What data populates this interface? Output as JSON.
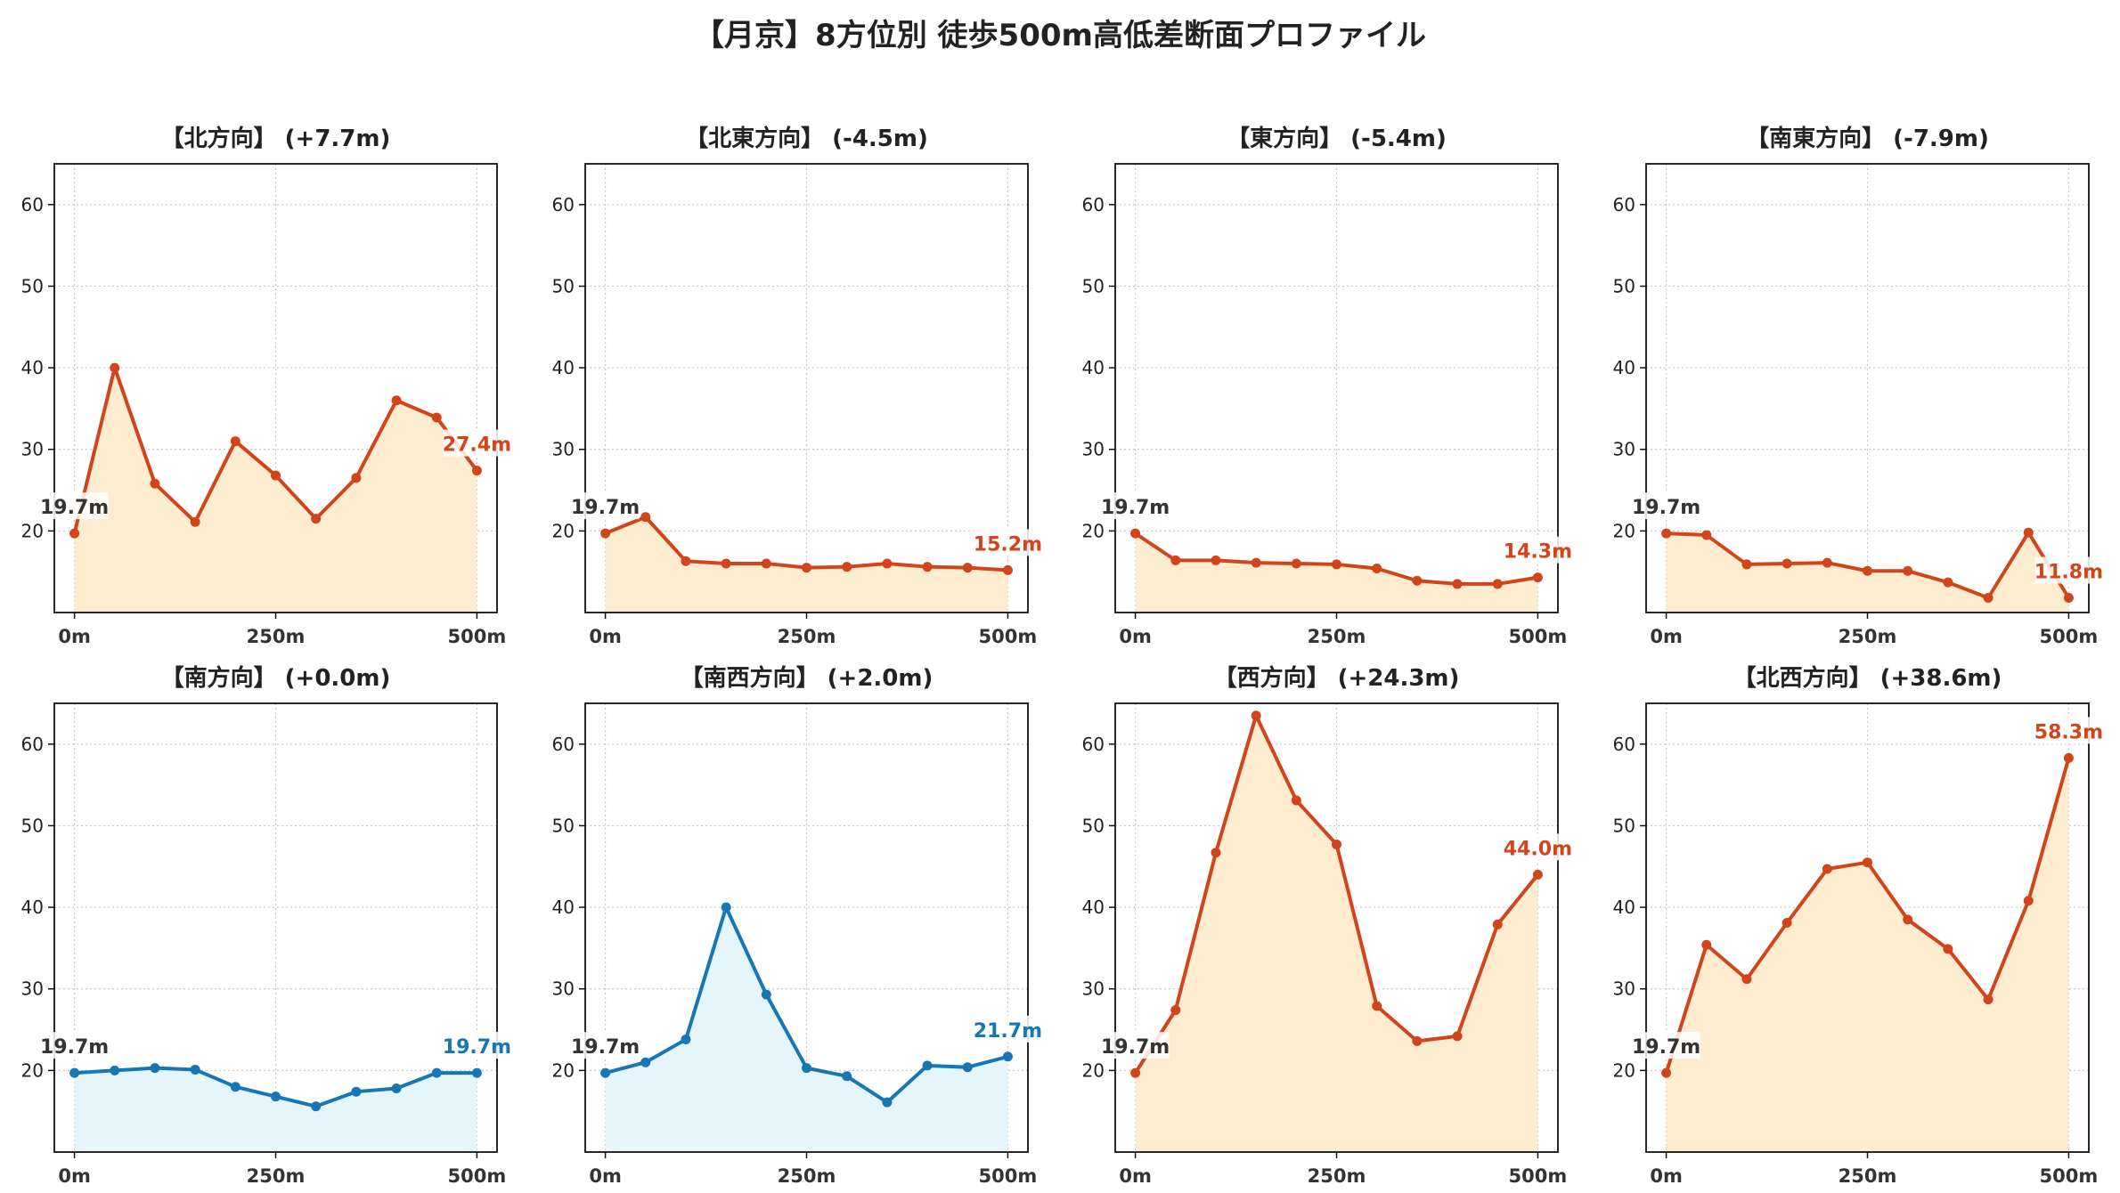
{
  "figure": {
    "title": "【月京】8方位別 徒歩500m高低差断面プロファイル"
  },
  "colors": {
    "up_line": "#d2441a",
    "up_fill": "#fdecd0",
    "down_line": "#1676b6",
    "down_fill": "#e6f4fb",
    "start_label": "#333333",
    "grid": "#c8c8c8"
  },
  "chart_data": [
    {
      "type": "area",
      "title": "【北方向】 (+7.7m)",
      "x": [
        0,
        50,
        100,
        150,
        200,
        250,
        300,
        350,
        400,
        450,
        500
      ],
      "xticks": [
        0,
        250,
        500
      ],
      "xtick_labels": [
        "0m",
        "250m",
        "500m"
      ],
      "values": [
        19.7,
        40.0,
        25.8,
        21.1,
        31.0,
        26.8,
        21.5,
        26.5,
        36.0,
        33.9,
        27.4
      ],
      "start_label": "19.7m",
      "end_label": "27.4m",
      "trend": "up",
      "ylim": [
        10,
        65
      ],
      "yticks": [
        20,
        30,
        40,
        50,
        60
      ],
      "grid": true
    },
    {
      "type": "area",
      "title": "【北東方向】 (-4.5m)",
      "x": [
        0,
        50,
        100,
        150,
        200,
        250,
        300,
        350,
        400,
        450,
        500
      ],
      "xticks": [
        0,
        250,
        500
      ],
      "xtick_labels": [
        "0m",
        "250m",
        "500m"
      ],
      "values": [
        19.7,
        21.7,
        16.3,
        16.0,
        16.0,
        15.5,
        15.6,
        16.0,
        15.6,
        15.5,
        15.2
      ],
      "start_label": "19.7m",
      "end_label": "15.2m",
      "trend": "up",
      "ylim": [
        10,
        65
      ],
      "yticks": [
        20,
        30,
        40,
        50,
        60
      ],
      "grid": true
    },
    {
      "type": "area",
      "title": "【東方向】 (-5.4m)",
      "x": [
        0,
        50,
        100,
        150,
        200,
        250,
        300,
        350,
        400,
        450,
        500
      ],
      "xticks": [
        0,
        250,
        500
      ],
      "xtick_labels": [
        "0m",
        "250m",
        "500m"
      ],
      "values": [
        19.7,
        16.4,
        16.4,
        16.1,
        16.0,
        15.9,
        15.4,
        13.9,
        13.5,
        13.5,
        14.3
      ],
      "start_label": "19.7m",
      "end_label": "14.3m",
      "trend": "up",
      "ylim": [
        10,
        65
      ],
      "yticks": [
        20,
        30,
        40,
        50,
        60
      ],
      "grid": true
    },
    {
      "type": "area",
      "title": "【南東方向】 (-7.9m)",
      "x": [
        0,
        50,
        100,
        150,
        200,
        250,
        300,
        350,
        400,
        450,
        500
      ],
      "xticks": [
        0,
        250,
        500
      ],
      "xtick_labels": [
        "0m",
        "250m",
        "500m"
      ],
      "values": [
        19.7,
        19.5,
        15.9,
        16.0,
        16.1,
        15.1,
        15.1,
        13.7,
        11.8,
        19.8,
        11.8
      ],
      "start_label": "19.7m",
      "end_label": "11.8m",
      "trend": "up",
      "ylim": [
        10,
        65
      ],
      "yticks": [
        20,
        30,
        40,
        50,
        60
      ],
      "grid": true
    },
    {
      "type": "area",
      "title": "【南方向】 (+0.0m)",
      "x": [
        0,
        50,
        100,
        150,
        200,
        250,
        300,
        350,
        400,
        450,
        500
      ],
      "xticks": [
        0,
        250,
        500
      ],
      "xtick_labels": [
        "0m",
        "250m",
        "500m"
      ],
      "values": [
        19.7,
        20.0,
        20.3,
        20.1,
        18.0,
        16.8,
        15.6,
        17.4,
        17.8,
        19.7,
        19.7
      ],
      "start_label": "19.7m",
      "end_label": "19.7m",
      "trend": "down",
      "ylim": [
        10,
        65
      ],
      "yticks": [
        20,
        30,
        40,
        50,
        60
      ],
      "grid": true
    },
    {
      "type": "area",
      "title": "【南西方向】 (+2.0m)",
      "x": [
        0,
        50,
        100,
        150,
        200,
        250,
        300,
        350,
        400,
        450,
        500
      ],
      "xticks": [
        0,
        250,
        500
      ],
      "xtick_labels": [
        "0m",
        "250m",
        "500m"
      ],
      "values": [
        19.7,
        21.0,
        23.8,
        40.0,
        29.3,
        20.3,
        19.3,
        16.1,
        20.6,
        20.4,
        21.7
      ],
      "start_label": "19.7m",
      "end_label": "21.7m",
      "trend": "down",
      "ylim": [
        10,
        65
      ],
      "yticks": [
        20,
        30,
        40,
        50,
        60
      ],
      "grid": true
    },
    {
      "type": "area",
      "title": "【西方向】 (+24.3m)",
      "x": [
        0,
        50,
        100,
        150,
        200,
        250,
        300,
        350,
        400,
        450,
        500
      ],
      "xticks": [
        0,
        250,
        500
      ],
      "xtick_labels": [
        "0m",
        "250m",
        "500m"
      ],
      "values": [
        19.7,
        27.4,
        46.7,
        63.5,
        53.1,
        47.7,
        27.9,
        23.6,
        24.2,
        37.9,
        44.0
      ],
      "start_label": "19.7m",
      "end_label": "44.0m",
      "trend": "up",
      "ylim": [
        10,
        65
      ],
      "yticks": [
        20,
        30,
        40,
        50,
        60
      ],
      "grid": true
    },
    {
      "type": "area",
      "title": "【北西方向】 (+38.6m)",
      "x": [
        0,
        50,
        100,
        150,
        200,
        250,
        300,
        350,
        400,
        450,
        500
      ],
      "xticks": [
        0,
        250,
        500
      ],
      "xtick_labels": [
        "0m",
        "250m",
        "500m"
      ],
      "values": [
        19.7,
        35.4,
        31.2,
        38.1,
        44.7,
        45.5,
        38.5,
        34.9,
        28.7,
        40.8,
        58.3
      ],
      "start_label": "19.7m",
      "end_label": "58.3m",
      "trend": "up",
      "ylim": [
        10,
        65
      ],
      "yticks": [
        20,
        30,
        40,
        50,
        60
      ],
      "grid": true
    }
  ]
}
